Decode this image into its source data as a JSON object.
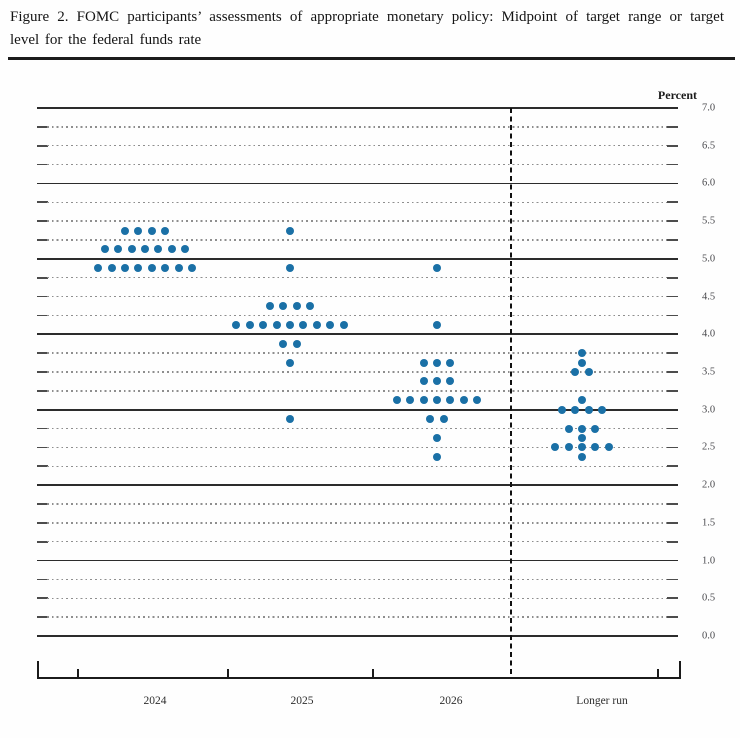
{
  "title": "Figure 2.  FOMC participants’ assessments of appropriate monetary policy:  Midpoint of target range or target level for the federal funds rate",
  "chart_data": {
    "type": "scatter",
    "subtype": "fomc-dot-plot",
    "title": "Figure 2. FOMC participants’ assessments of appropriate monetary policy: Midpoint of target range or target level for the federal funds rate",
    "ylabel": "Percent",
    "xlabel": "",
    "ylim": [
      0.0,
      7.0
    ],
    "grid_step": 0.25,
    "ytick_step": 0.5,
    "ytick_labels": [
      "7.0",
      "6.5",
      "6.0",
      "5.5",
      "5.0",
      "4.5",
      "4.0",
      "3.5",
      "3.0",
      "2.5",
      "2.0",
      "1.5",
      "1.0",
      "0.5",
      "0.0"
    ],
    "categories": [
      "2024",
      "2025",
      "2026",
      "Longer run"
    ],
    "separator_after_category": "2026",
    "grid": true,
    "legend": false,
    "dot_color": "#1a70a6",
    "participants_per_column": 19,
    "series": [
      {
        "name": "2024",
        "dots": [
          {
            "rate": 5.375,
            "count": 4
          },
          {
            "rate": 5.125,
            "count": 7
          },
          {
            "rate": 4.875,
            "count": 8
          }
        ]
      },
      {
        "name": "2025",
        "dots": [
          {
            "rate": 5.375,
            "count": 1
          },
          {
            "rate": 4.875,
            "count": 1
          },
          {
            "rate": 4.375,
            "count": 4
          },
          {
            "rate": 4.125,
            "count": 9
          },
          {
            "rate": 3.875,
            "count": 2
          },
          {
            "rate": 3.625,
            "count": 1
          },
          {
            "rate": 2.875,
            "count": 1
          }
        ]
      },
      {
        "name": "2026",
        "dots": [
          {
            "rate": 4.875,
            "count": 1
          },
          {
            "rate": 4.125,
            "count": 1
          },
          {
            "rate": 3.625,
            "count": 3
          },
          {
            "rate": 3.375,
            "count": 3
          },
          {
            "rate": 3.125,
            "count": 7
          },
          {
            "rate": 2.875,
            "count": 2
          },
          {
            "rate": 2.625,
            "count": 1
          },
          {
            "rate": 2.375,
            "count": 1
          }
        ]
      },
      {
        "name": "Longer run",
        "dots": [
          {
            "rate": 3.75,
            "count": 1
          },
          {
            "rate": 3.625,
            "count": 1
          },
          {
            "rate": 3.5,
            "count": 2
          },
          {
            "rate": 3.125,
            "count": 1
          },
          {
            "rate": 3.0,
            "count": 4
          },
          {
            "rate": 2.75,
            "count": 3
          },
          {
            "rate": 2.625,
            "count": 1
          },
          {
            "rate": 2.5,
            "count": 5
          },
          {
            "rate": 2.375,
            "count": 1
          }
        ]
      }
    ]
  }
}
